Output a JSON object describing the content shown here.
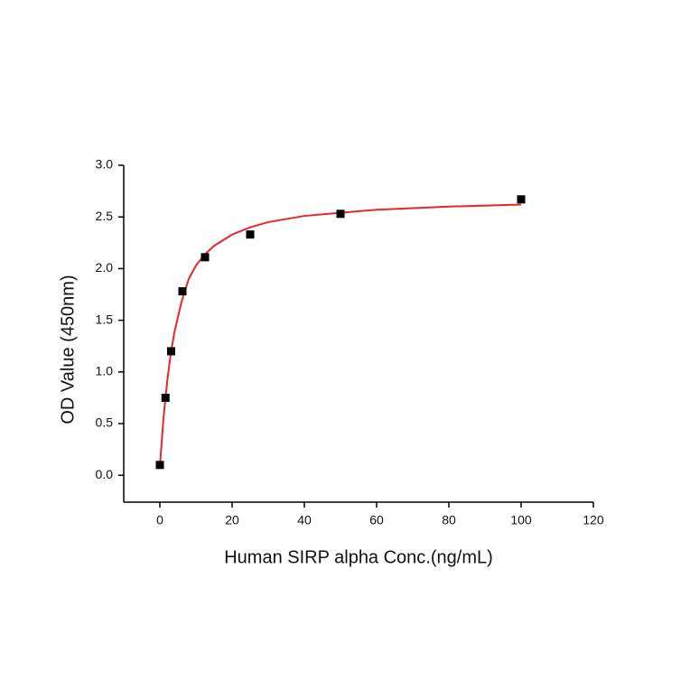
{
  "chart_data": {
    "type": "scatter",
    "xlabel": "Human SIRP alpha Conc.(ng/mL)",
    "ylabel": "OD Value (450nm)",
    "xlim": [
      -10,
      120
    ],
    "xticks": [
      0,
      20,
      40,
      60,
      80,
      100,
      120
    ],
    "ylim": [
      -0.26,
      3.0
    ],
    "yticks": [
      {
        "value": 0,
        "label": "0.0"
      },
      {
        "value": 0.5,
        "label": "0.5"
      },
      {
        "value": 1,
        "label": "1.0"
      },
      {
        "value": 1.5,
        "label": "1.5"
      },
      {
        "value": 2,
        "label": "2.0"
      },
      {
        "value": 2.5,
        "label": "2.5"
      },
      {
        "value": 3,
        "label": "3.0"
      }
    ],
    "series": [
      {
        "type": "line",
        "color": "#e8262a",
        "x": [
          0,
          1,
          2,
          3,
          4,
          6,
          8,
          10,
          12.5,
          15,
          20,
          25,
          30,
          40,
          50,
          60,
          80,
          100
        ],
        "values": [
          0.08,
          0.55,
          0.9,
          1.17,
          1.38,
          1.68,
          1.9,
          2.03,
          2.14,
          2.22,
          2.33,
          2.4,
          2.45,
          2.51,
          2.54,
          2.57,
          2.6,
          2.62
        ]
      },
      {
        "type": "scatter",
        "color": "#000000",
        "x": [
          0,
          1.5625,
          3.125,
          6.25,
          12.5,
          25,
          50,
          100
        ],
        "values": [
          0.1,
          0.75,
          1.2,
          1.78,
          2.11,
          2.33,
          2.53,
          2.67
        ]
      }
    ]
  }
}
